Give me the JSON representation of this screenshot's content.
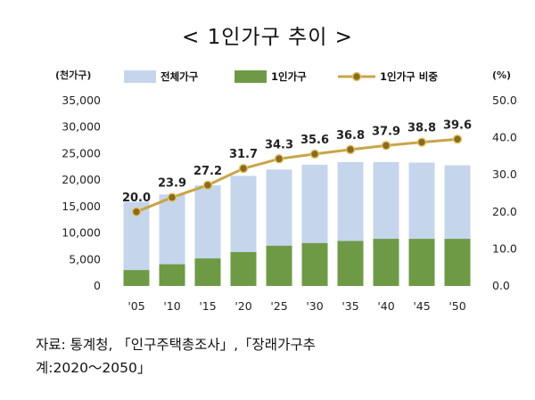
{
  "chart_data": {
    "type": "bar",
    "title": "< 1인가구 추이 >",
    "left_unit": "(천가구)",
    "right_unit": "(%)",
    "categories": [
      "'05",
      "'10",
      "'15",
      "'20",
      "'25",
      "'30",
      "'35",
      "'40",
      "'45",
      "'50"
    ],
    "series": [
      {
        "name": "전체가구",
        "kind": "bar",
        "axis": "left",
        "color": "#c5d5ec",
        "values": [
          15900,
          17300,
          19000,
          20800,
          22000,
          22900,
          23400,
          23400,
          23300,
          22800
        ]
      },
      {
        "name": "1인가구",
        "kind": "bar",
        "axis": "left",
        "color": "#6e9a46",
        "values": [
          3000,
          4100,
          5200,
          6400,
          7600,
          8100,
          8500,
          8900,
          8900,
          8900
        ]
      },
      {
        "name": "1인가구 비중",
        "kind": "line",
        "axis": "right",
        "color": "#c9a547",
        "values": [
          20.0,
          23.9,
          27.2,
          31.7,
          34.3,
          35.6,
          36.8,
          37.9,
          38.8,
          39.6
        ],
        "labels": [
          "20.0",
          "23.9",
          "27.2",
          "31.7",
          "34.3",
          "35.6",
          "36.8",
          "37.9",
          "38.8",
          "39.6"
        ]
      }
    ],
    "y_left": {
      "min": 0,
      "max": 35000,
      "ticks": [
        "0",
        "5,000",
        "10,000",
        "15,000",
        "20,000",
        "25,000",
        "30,000",
        "35,000"
      ]
    },
    "y_right": {
      "min": 0,
      "max": 50,
      "ticks": [
        "0.0",
        "10.0",
        "20.0",
        "30.0",
        "40.0",
        "50.0"
      ]
    },
    "legend_position": "top",
    "grid": false
  },
  "source": {
    "line1": "자료: 통계청, 「인구주택총조사」,「장래가구추",
    "line2": "계:2020～2050」"
  }
}
